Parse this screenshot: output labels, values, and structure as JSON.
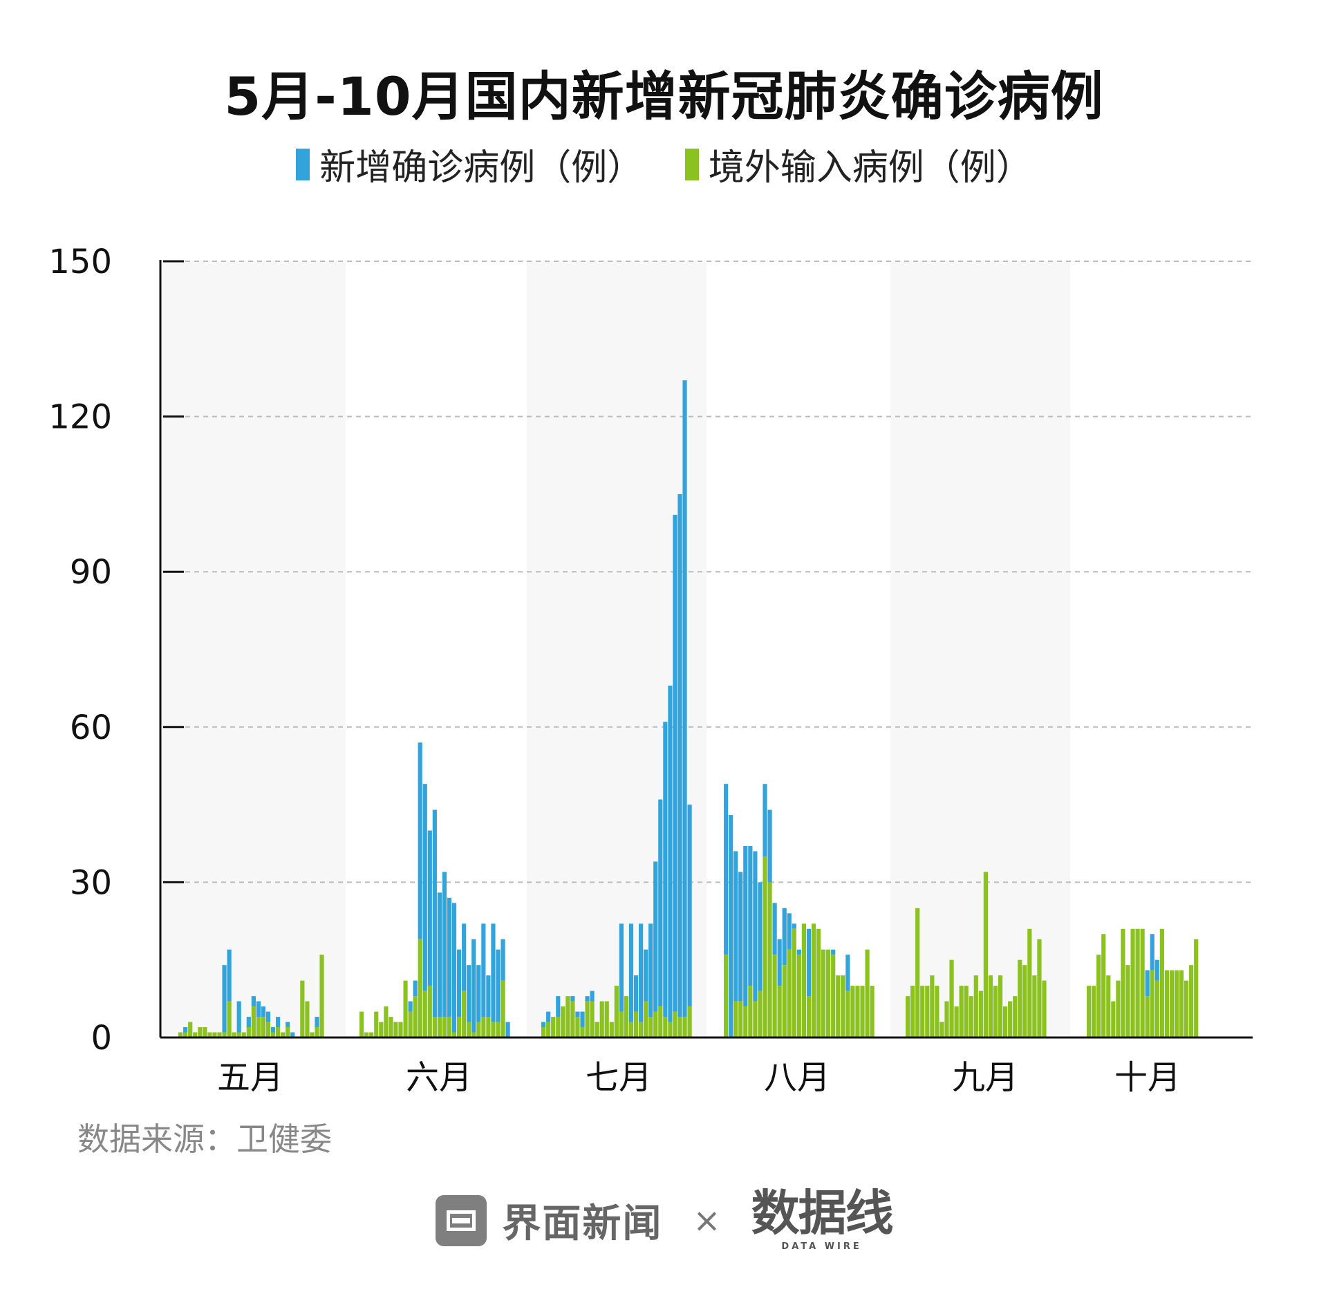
{
  "chart_data": {
    "type": "bar",
    "stacked": true,
    "title": "5月-10月国内新增新冠肺炎确诊病例",
    "legend": [
      {
        "name": "新增确诊病例（例）",
        "color": "#33a3dc"
      },
      {
        "name": "境外输入病例（例）",
        "color": "#8cc220"
      }
    ],
    "legend_position": "top",
    "ylim": [
      0,
      150
    ],
    "yticks": [
      "0",
      "30",
      "60",
      "90",
      "120",
      "150"
    ],
    "grid": true,
    "xlabel": "",
    "ylabel": "",
    "months": [
      {
        "label": "五月",
        "total": [
          1,
          2,
          3,
          1,
          2,
          2,
          1,
          1,
          1,
          14,
          17,
          1,
          7,
          1,
          4,
          8,
          7,
          6,
          5,
          2,
          4,
          1,
          3,
          1,
          0,
          1,
          2,
          1,
          4,
          16
        ],
        "imported": [
          1,
          1,
          3,
          1,
          2,
          2,
          1,
          1,
          1,
          1,
          7,
          1,
          1,
          1,
          2,
          6,
          4,
          4,
          3,
          1,
          2,
          1,
          2,
          0,
          0,
          11,
          7,
          1,
          2,
          16
        ]
      },
      {
        "label": "六月",
        "total": [
          5,
          1,
          1,
          5,
          3,
          6,
          4,
          3,
          3,
          11,
          7,
          11,
          57,
          49,
          40,
          44,
          28,
          32,
          27,
          26,
          17,
          22,
          14,
          19,
          14,
          22,
          12,
          22,
          17,
          19,
          3
        ],
        "imported": [
          5,
          1,
          1,
          5,
          3,
          6,
          4,
          3,
          3,
          11,
          5,
          8,
          19,
          9,
          10,
          4,
          4,
          4,
          4,
          1,
          4,
          9,
          3,
          1,
          3,
          4,
          4,
          3,
          3,
          11,
          0
        ]
      },
      {
        "label": "七月",
        "total": [
          3,
          5,
          4,
          8,
          5,
          8,
          8,
          5,
          5,
          8,
          9,
          3,
          7,
          7,
          3,
          10,
          22,
          8,
          22,
          12,
          22,
          17,
          22,
          34,
          46,
          61,
          68,
          101,
          105,
          127,
          45
        ],
        "imported": [
          2,
          3,
          4,
          4,
          6,
          8,
          7,
          4,
          2,
          7,
          7,
          3,
          7,
          7,
          3,
          10,
          5,
          8,
          3,
          5,
          3,
          7,
          4,
          5,
          6,
          4,
          3,
          5,
          4,
          4,
          6
        ]
      },
      {
        "label": "八月",
        "total": [
          49,
          43,
          36,
          32,
          37,
          37,
          36,
          30,
          49,
          44,
          26,
          19,
          25,
          24,
          22,
          17,
          22,
          21,
          17,
          16,
          16,
          16,
          17,
          12,
          12,
          16,
          10,
          10,
          10,
          17,
          10
        ],
        "imported": [
          16,
          0,
          7,
          7,
          6,
          10,
          7,
          9,
          35,
          30,
          16,
          10,
          14,
          17,
          21,
          16,
          22,
          8,
          22,
          21,
          17,
          17,
          16,
          12,
          12,
          9,
          10,
          10,
          10,
          17,
          10
        ]
      },
      {
        "label": "九月",
        "total": [
          8,
          10,
          25,
          10,
          10,
          12,
          10,
          3,
          7,
          15,
          6,
          10,
          10,
          8,
          12,
          9,
          32,
          12,
          10,
          12,
          6,
          7,
          8,
          15,
          14,
          21,
          12,
          19,
          11
        ],
        "imported": [
          8,
          10,
          25,
          10,
          10,
          12,
          10,
          3,
          7,
          15,
          6,
          10,
          10,
          8,
          12,
          9,
          32,
          12,
          10,
          12,
          6,
          7,
          8,
          15,
          14,
          21,
          12,
          19,
          11
        ]
      },
      {
        "label": "十月",
        "total": [
          10,
          10,
          16,
          20,
          12,
          7,
          11,
          21,
          14,
          21,
          21,
          21,
          13,
          20,
          15,
          21,
          13,
          13,
          13,
          13,
          11,
          14,
          19
        ],
        "imported": [
          10,
          10,
          16,
          20,
          12,
          7,
          11,
          21,
          14,
          21,
          21,
          21,
          8,
          13,
          11,
          21,
          13,
          13,
          13,
          13,
          11,
          14,
          19
        ]
      }
    ]
  },
  "source": "数据来源：卫健委",
  "footer": {
    "brand_name": "界面新闻",
    "times_sign": "×",
    "datawire_name": "数据线",
    "datawire_sub": "DATA WIRE"
  }
}
